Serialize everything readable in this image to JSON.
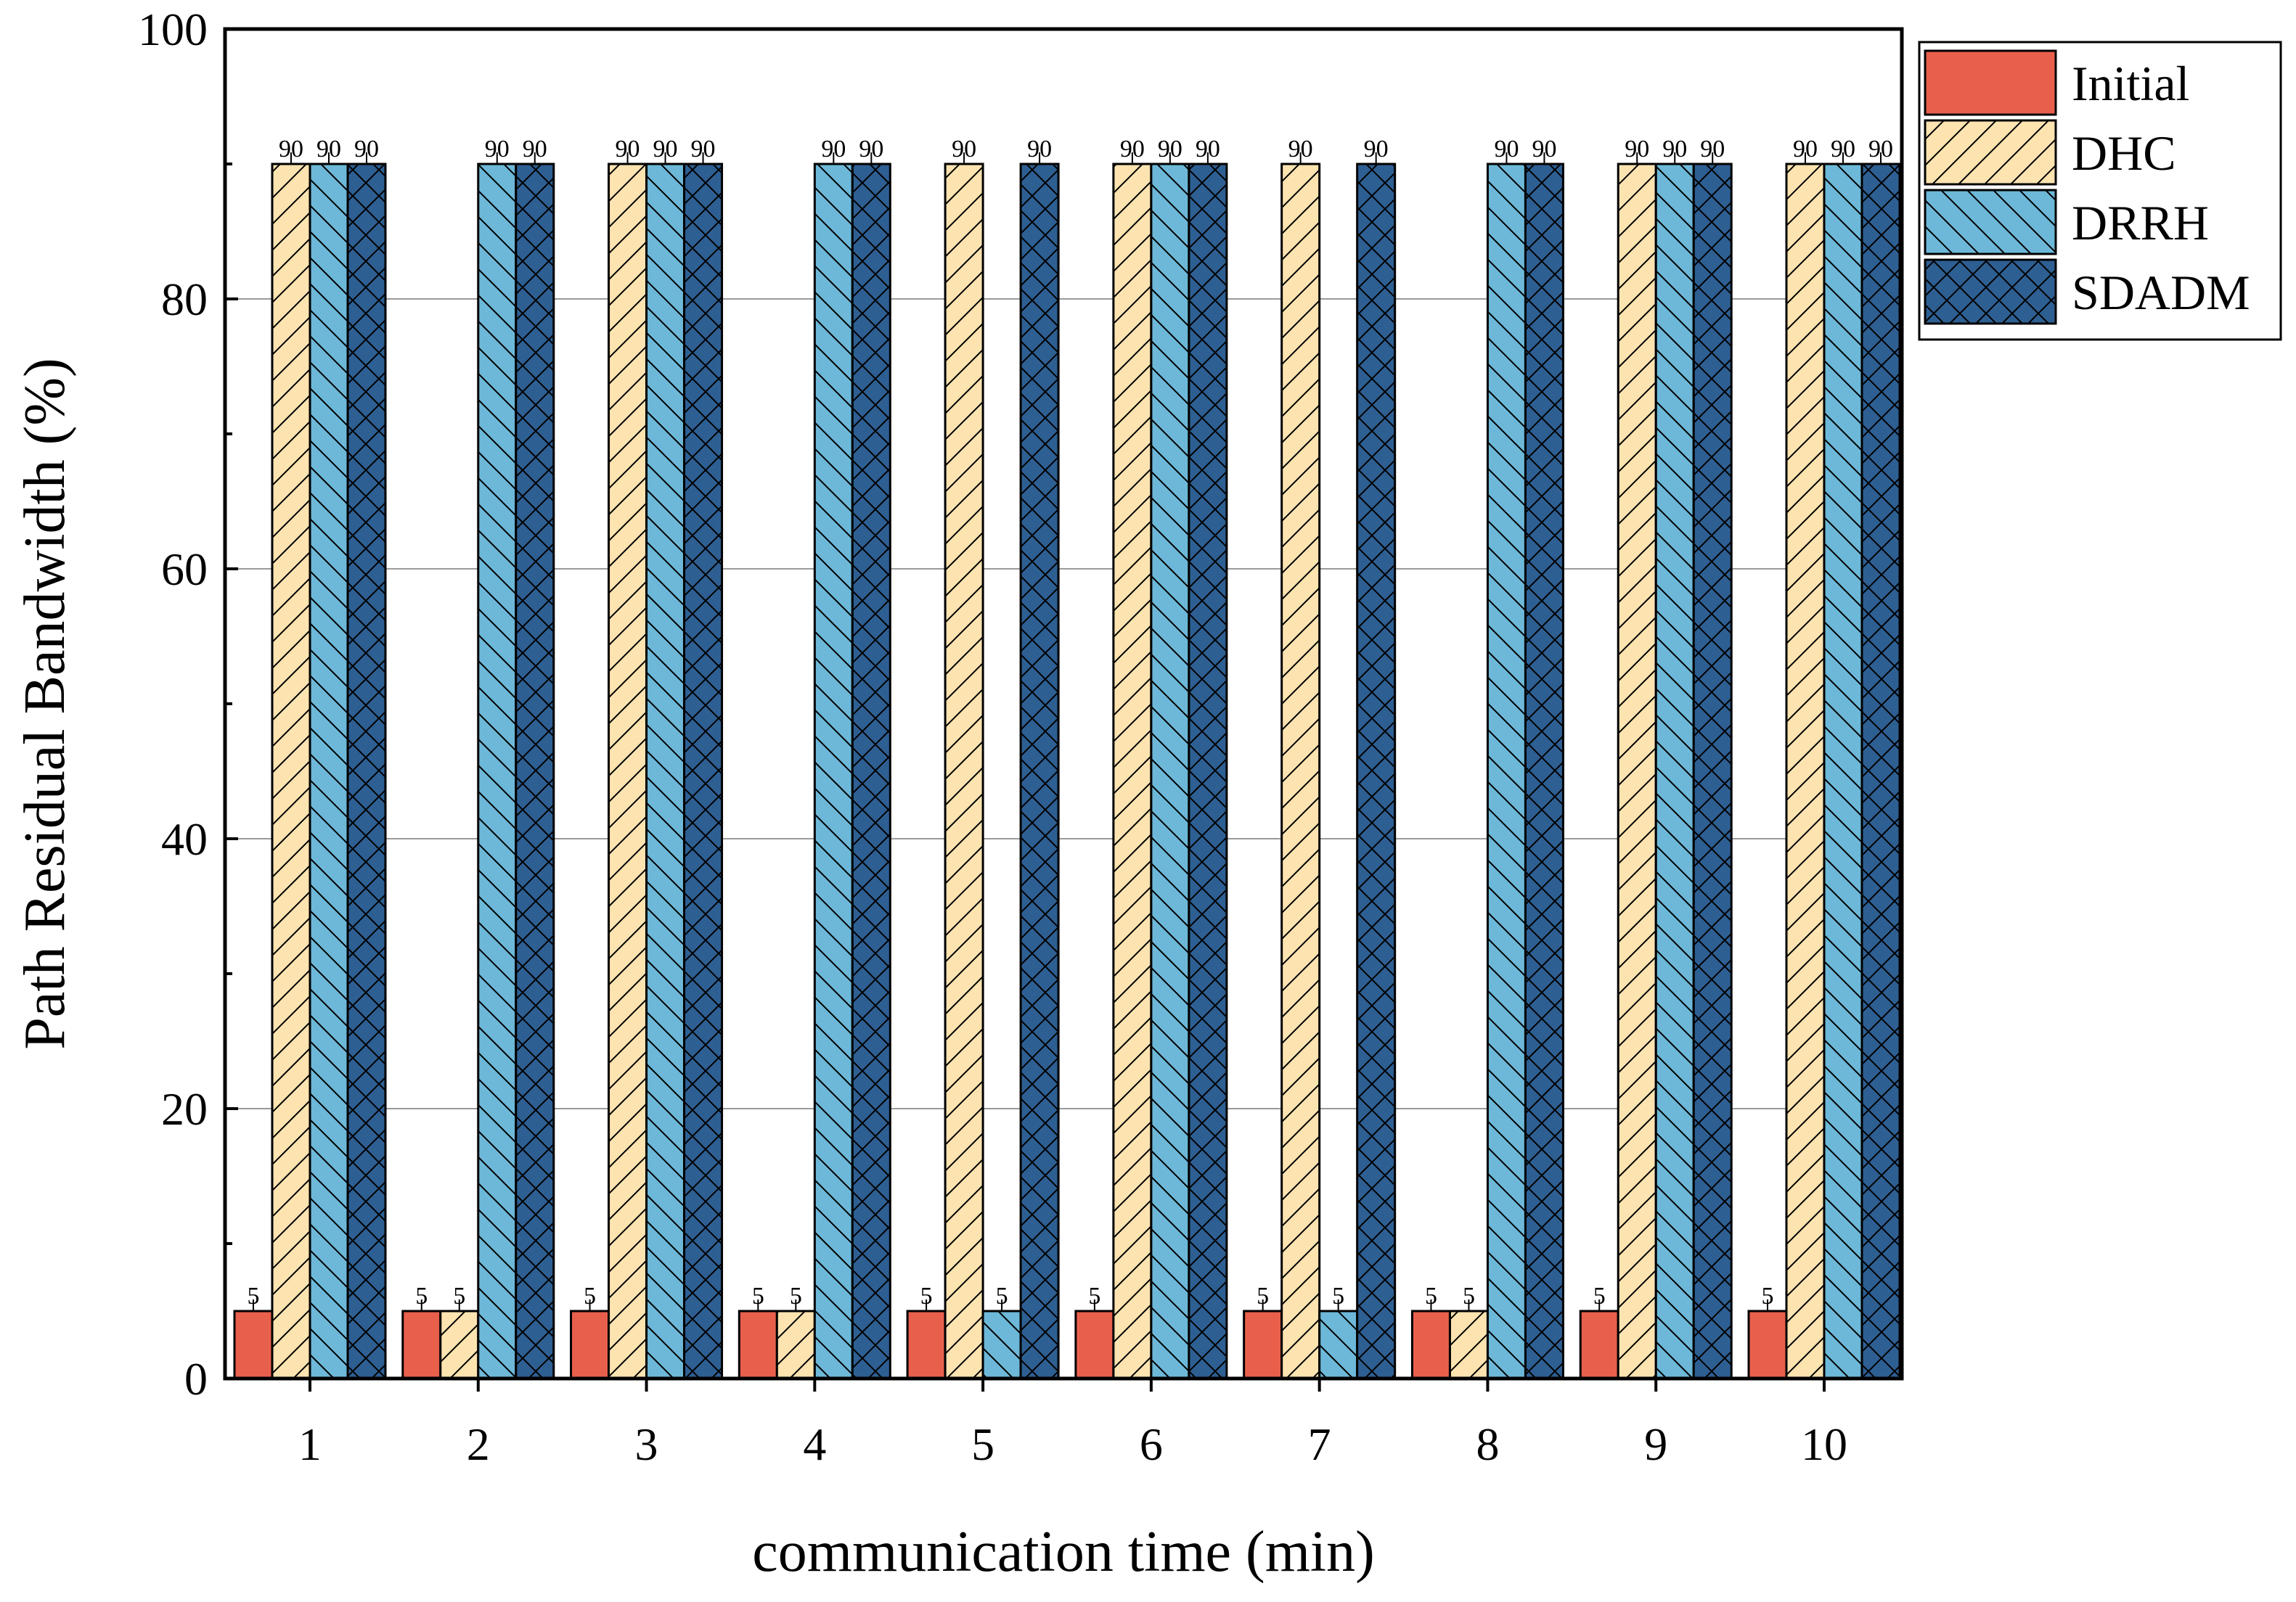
{
  "chart_data": {
    "type": "bar",
    "title": "",
    "xlabel": "communication time (min)",
    "ylabel": "Path Residual Bandwidth (%)",
    "categories": [
      "1",
      "2",
      "3",
      "4",
      "5",
      "6",
      "7",
      "8",
      "9",
      "10"
    ],
    "ylim": [
      0,
      100
    ],
    "yticks": [
      "0",
      "20",
      "40",
      "60",
      "80",
      "100"
    ],
    "grid": "horizontal",
    "legend_position": "outside-top-right",
    "series": [
      {
        "name": "Initial",
        "color": "#E8604C",
        "pattern": "none",
        "values": [
          5,
          5,
          5,
          5,
          5,
          5,
          5,
          5,
          5,
          5
        ],
        "labels": [
          "5",
          "5",
          "5",
          "5",
          "5",
          "5",
          "5",
          "5",
          "5",
          "5"
        ]
      },
      {
        "name": "DHC",
        "color": "#FCE3B0",
        "pattern": "forward-diagonal",
        "values": [
          90,
          5,
          90,
          5,
          90,
          90,
          90,
          5,
          90,
          90
        ],
        "labels": [
          "90",
          "5",
          "90",
          "5",
          "90",
          "90",
          "90",
          "5",
          "90",
          "90"
        ]
      },
      {
        "name": "DRRH",
        "color": "#6DB8D8",
        "pattern": "back-diagonal",
        "values": [
          90,
          90,
          90,
          90,
          5,
          90,
          5,
          90,
          90,
          90
        ],
        "labels": [
          "90",
          "90",
          "90",
          "90",
          "5",
          "90",
          "5",
          "90",
          "90",
          "90"
        ]
      },
      {
        "name": "SDADM",
        "color": "#2E5F92",
        "pattern": "crosshatch",
        "values": [
          90,
          90,
          90,
          90,
          90,
          90,
          90,
          90,
          90,
          90
        ],
        "labels": [
          "90",
          "90",
          "90",
          "90",
          "90",
          "90",
          "90",
          "90",
          "90",
          "90"
        ]
      }
    ]
  }
}
